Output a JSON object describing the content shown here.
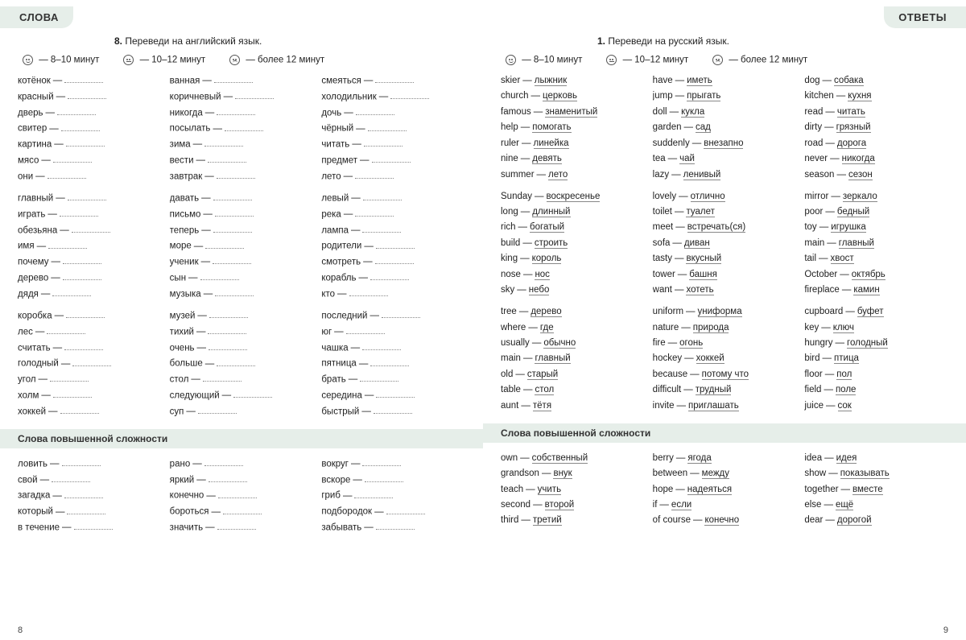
{
  "left": {
    "tab": "СЛОВА",
    "instr_num": "8.",
    "instr_text": "Переведи на английский язык.",
    "timing": [
      "— 8–10 минут",
      "— 10–12 минут",
      "— более 12 минут"
    ],
    "sect_title": "Слова повышенной сложности",
    "pagenum": "8",
    "blocks": [
      [
        [
          "котёнок",
          "красный",
          "дверь",
          "свитер",
          "картина",
          "мясо",
          "они"
        ],
        [
          "ванная",
          "коричневый",
          "никогда",
          "посылать",
          "зима",
          "вести",
          "завтрак"
        ],
        [
          "смеяться",
          "холодильник",
          "дочь",
          "чёрный",
          "читать",
          "предмет",
          "лето"
        ]
      ],
      [
        [
          "главный",
          "играть",
          "обезьяна",
          "имя",
          "почему",
          "дерево",
          "дядя"
        ],
        [
          "давать",
          "письмо",
          "теперь",
          "море",
          "ученик",
          "сын",
          "музыка"
        ],
        [
          "левый",
          "река",
          "лампа",
          "родители",
          "смотреть",
          "корабль",
          "кто"
        ]
      ],
      [
        [
          "коробка",
          "лес",
          "считать",
          "голодный",
          "угол",
          "холм",
          "хоккей"
        ],
        [
          "музей",
          "тихий",
          "очень",
          "больше",
          "стол",
          "следующий",
          "суп"
        ],
        [
          "последний",
          "юг",
          "чашка",
          "пятница",
          "брать",
          "середина",
          "быстрый"
        ]
      ]
    ],
    "extra": [
      [
        "ловить",
        "свой",
        "загадка",
        "который",
        "в течение"
      ],
      [
        "рано",
        "яркий",
        "конечно",
        "бороться",
        "значить"
      ],
      [
        "вокруг",
        "вскоре",
        "гриб",
        "подбородок",
        "забывать"
      ]
    ]
  },
  "right": {
    "tab": "ОТВЕТЫ",
    "instr_num": "1.",
    "instr_text": "Переведи на русский язык.",
    "timing": [
      "— 8–10 минут",
      "— 10–12 минут",
      "— более 12 минут"
    ],
    "sect_title": "Слова повышенной сложности",
    "pagenum": "9",
    "blocks": [
      [
        [
          [
            "skier",
            "лыжник"
          ],
          [
            "church",
            "церковь"
          ],
          [
            "famous",
            "знаменитый"
          ],
          [
            "help",
            "помогать"
          ],
          [
            "ruler",
            "линейка"
          ],
          [
            "nine",
            "девять"
          ],
          [
            "summer",
            "лето"
          ]
        ],
        [
          [
            "have",
            "иметь"
          ],
          [
            "jump",
            "прыгать"
          ],
          [
            "doll",
            "кукла"
          ],
          [
            "garden",
            "сад"
          ],
          [
            "suddenly",
            "внезапно"
          ],
          [
            "tea",
            "чай"
          ],
          [
            "lazy",
            "ленивый"
          ]
        ],
        [
          [
            "dog",
            "собака"
          ],
          [
            "kitchen",
            "кухня"
          ],
          [
            "read",
            "читать"
          ],
          [
            "dirty",
            "грязный"
          ],
          [
            "road",
            "дорога"
          ],
          [
            "never",
            "никогда"
          ],
          [
            "season",
            "сезон"
          ]
        ]
      ],
      [
        [
          [
            "Sunday",
            "воскресенье"
          ],
          [
            "long",
            "длинный"
          ],
          [
            "rich",
            "богатый"
          ],
          [
            "build",
            "строить"
          ],
          [
            "king",
            "король"
          ],
          [
            "nose",
            "нос"
          ],
          [
            "sky",
            "небо"
          ]
        ],
        [
          [
            "lovely",
            "отлично"
          ],
          [
            "toilet",
            "туалет"
          ],
          [
            "meet",
            "встречать(ся)"
          ],
          [
            "sofa",
            "диван"
          ],
          [
            "tasty",
            "вкусный"
          ],
          [
            "tower",
            "башня"
          ],
          [
            "want",
            "хотеть"
          ]
        ],
        [
          [
            "mirror",
            "зеркало"
          ],
          [
            "poor",
            "бедный"
          ],
          [
            "toy",
            "игрушка"
          ],
          [
            "main",
            "главный"
          ],
          [
            "tail",
            "хвост"
          ],
          [
            "October",
            "октябрь"
          ],
          [
            "fireplace",
            "камин"
          ]
        ]
      ],
      [
        [
          [
            "tree",
            "дерево"
          ],
          [
            "where",
            "где"
          ],
          [
            "usually",
            "обычно"
          ],
          [
            "main",
            "главный"
          ],
          [
            "old",
            "старый"
          ],
          [
            "table",
            "стол"
          ],
          [
            "aunt",
            "тётя"
          ]
        ],
        [
          [
            "uniform",
            "униформа"
          ],
          [
            "nature",
            "природа"
          ],
          [
            "fire",
            "огонь"
          ],
          [
            "hockey",
            "хоккей"
          ],
          [
            "because",
            "потому что"
          ],
          [
            "difficult",
            "трудный"
          ],
          [
            "invite",
            "приглашать"
          ]
        ],
        [
          [
            "cupboard",
            "буфет"
          ],
          [
            "key",
            "ключ"
          ],
          [
            "hungry",
            "голодный"
          ],
          [
            "bird",
            "птица"
          ],
          [
            "floor",
            "пол"
          ],
          [
            "field",
            "поле"
          ],
          [
            "juice",
            "сок"
          ]
        ]
      ]
    ],
    "extra": [
      [
        [
          "own",
          "собственный"
        ],
        [
          "grandson",
          "внук"
        ],
        [
          "teach",
          "учить"
        ],
        [
          "second",
          "второй"
        ],
        [
          "third",
          "третий"
        ]
      ],
      [
        [
          "berry",
          "ягода"
        ],
        [
          "between",
          "между"
        ],
        [
          "hope",
          "надеяться"
        ],
        [
          "if",
          "если"
        ],
        [
          "of course",
          "конечно"
        ]
      ],
      [
        [
          "idea",
          "идея"
        ],
        [
          "show",
          "показывать"
        ],
        [
          "together",
          "вместе"
        ],
        [
          "else",
          "ещё"
        ],
        [
          "dear",
          "дорогой"
        ]
      ]
    ]
  }
}
